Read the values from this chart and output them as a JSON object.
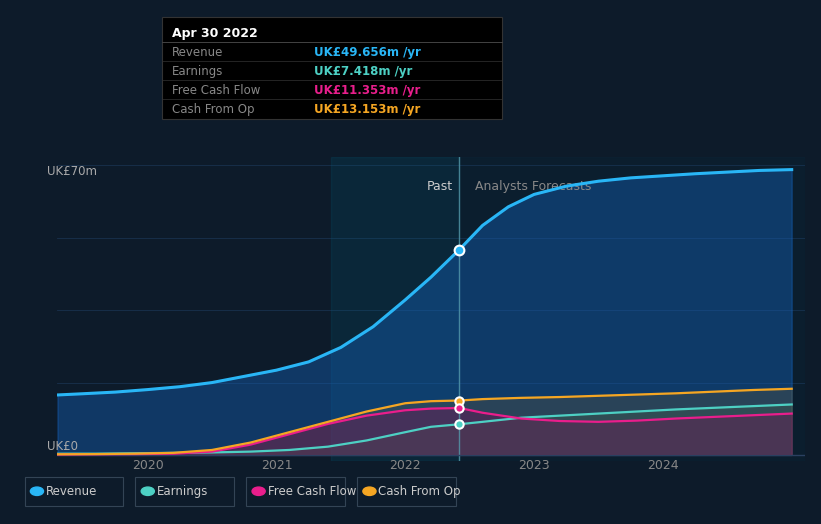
{
  "bg_color": "#0d1b2a",
  "plot_bg_color": "#0d1b2a",
  "past_line_x": 2022.42,
  "past_label": "Past",
  "forecast_label": "Analysts Forecasts",
  "ylabel_top": "UK£70m",
  "ylabel_bottom": "UK£0",
  "x_min": 2019.3,
  "x_max": 2025.1,
  "y_min": -1.5,
  "y_max": 72,
  "revenue_x": [
    2019.3,
    2019.5,
    2019.75,
    2020.0,
    2020.25,
    2020.5,
    2020.75,
    2021.0,
    2021.25,
    2021.5,
    2021.75,
    2022.0,
    2022.2,
    2022.42,
    2022.6,
    2022.8,
    2023.0,
    2023.25,
    2023.5,
    2023.75,
    2024.0,
    2024.25,
    2024.5,
    2024.75,
    2025.0
  ],
  "revenue_y": [
    14.5,
    14.8,
    15.2,
    15.8,
    16.5,
    17.5,
    19.0,
    20.5,
    22.5,
    26.0,
    31.0,
    37.5,
    43.0,
    49.656,
    55.5,
    60.0,
    63.0,
    65.0,
    66.2,
    67.0,
    67.5,
    68.0,
    68.4,
    68.8,
    69.0
  ],
  "earnings_x": [
    2019.3,
    2019.6,
    2019.9,
    2020.2,
    2020.5,
    2020.8,
    2021.1,
    2021.4,
    2021.7,
    2022.0,
    2022.2,
    2022.42,
    2022.6,
    2022.9,
    2023.2,
    2023.5,
    2023.8,
    2024.1,
    2024.4,
    2024.7,
    2025.0
  ],
  "earnings_y": [
    0.3,
    0.3,
    0.4,
    0.5,
    0.6,
    0.8,
    1.2,
    2.0,
    3.5,
    5.5,
    6.8,
    7.418,
    8.0,
    9.0,
    9.5,
    10.0,
    10.5,
    11.0,
    11.4,
    11.8,
    12.2
  ],
  "fcf_x": [
    2019.3,
    2019.6,
    2019.9,
    2020.2,
    2020.5,
    2020.8,
    2021.1,
    2021.4,
    2021.7,
    2022.0,
    2022.2,
    2022.42,
    2022.6,
    2022.9,
    2023.2,
    2023.5,
    2023.8,
    2024.1,
    2024.4,
    2024.7,
    2025.0
  ],
  "fcf_y": [
    0.1,
    0.15,
    0.2,
    0.3,
    0.8,
    2.5,
    5.0,
    7.5,
    9.5,
    10.8,
    11.2,
    11.353,
    10.2,
    8.8,
    8.2,
    8.0,
    8.3,
    8.8,
    9.2,
    9.6,
    10.0
  ],
  "cashop_x": [
    2019.3,
    2019.6,
    2019.9,
    2020.2,
    2020.5,
    2020.8,
    2021.1,
    2021.4,
    2021.7,
    2022.0,
    2022.2,
    2022.42,
    2022.6,
    2022.9,
    2023.2,
    2023.5,
    2023.8,
    2024.1,
    2024.4,
    2024.7,
    2025.0
  ],
  "cashop_y": [
    0.15,
    0.2,
    0.3,
    0.5,
    1.2,
    3.0,
    5.5,
    8.0,
    10.5,
    12.5,
    13.0,
    13.153,
    13.5,
    13.8,
    14.0,
    14.3,
    14.6,
    14.9,
    15.3,
    15.7,
    16.0
  ],
  "revenue_color": "#29b6f6",
  "earnings_color": "#4dd0c4",
  "fcf_color": "#e91e8c",
  "cashop_color": "#f5a623",
  "legend_items": [
    "Revenue",
    "Earnings",
    "Free Cash Flow",
    "Cash From Op"
  ],
  "legend_colors": [
    "#29b6f6",
    "#4dd0c4",
    "#e91e8c",
    "#f5a623"
  ],
  "tooltip": {
    "title": "Apr 30 2022",
    "rows": [
      {
        "label": "Revenue",
        "value": "UK£49.656m /yr",
        "color": "#29b6f6"
      },
      {
        "label": "Earnings",
        "value": "UK£7.418m /yr",
        "color": "#4dd0c4"
      },
      {
        "label": "Free Cash Flow",
        "value": "UK£11.353m /yr",
        "color": "#e91e8c"
      },
      {
        "label": "Cash From Op",
        "value": "UK£13.153m /yr",
        "color": "#f5a623"
      }
    ]
  }
}
